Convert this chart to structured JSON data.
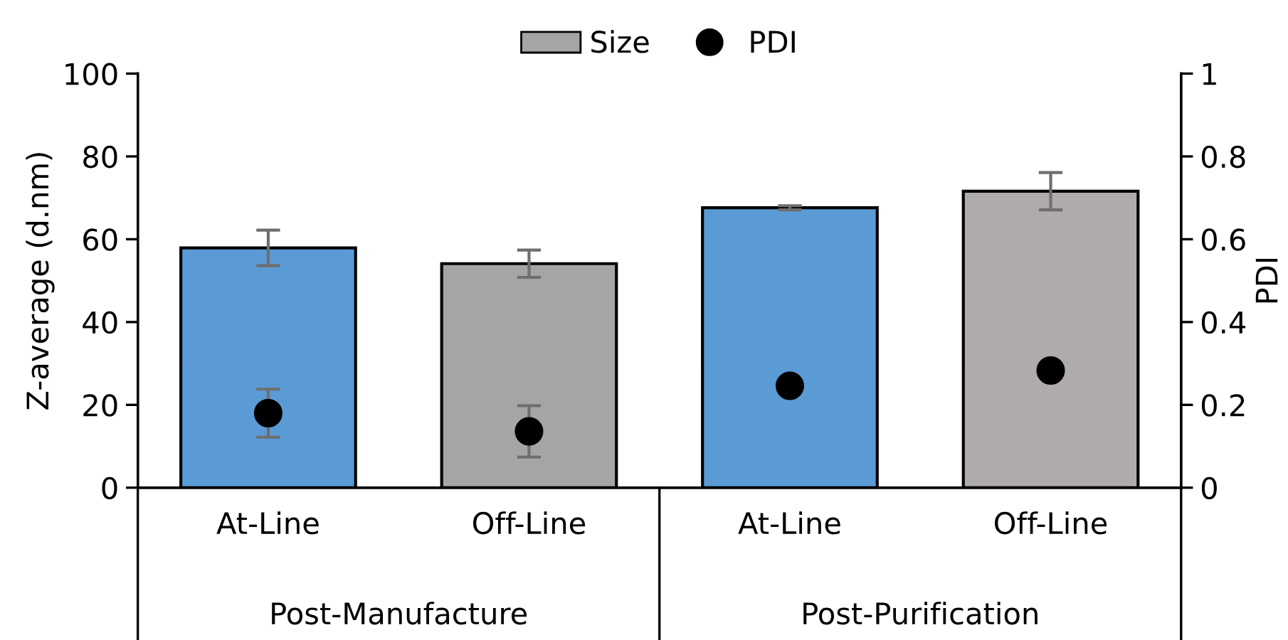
{
  "chart_data": {
    "type": "bar",
    "categories": [
      "At-Line",
      "Off-Line",
      "At-Line",
      "Off-Line"
    ],
    "annotations": [
      "Post-Manufacture",
      "Post-Purification"
    ],
    "ylabel": "Z-average (d.nm)",
    "y2label": "PDI",
    "ylim": [
      0,
      100
    ],
    "yticks": [
      0,
      20,
      40,
      60,
      80,
      100
    ],
    "y2lim": [
      0,
      1
    ],
    "y2ticks": [
      0,
      0.2,
      0.4,
      0.6,
      0.8,
      1
    ],
    "series": [
      {
        "name": "Size",
        "color": "#a5a5a5",
        "colors": [
          "#5b9bd5",
          "#a5a5a5",
          "#5b9bd5",
          "#afabab"
        ],
        "values": [
          57.9,
          54.1,
          67.6,
          71.6
        ],
        "errors": [
          4.3,
          3.3,
          0.5,
          4.5
        ]
      },
      {
        "name": "PDI",
        "type": "scatter",
        "axis": "y2",
        "color": "#000000",
        "marker": "circle",
        "values": [
          0.18,
          0.136,
          0.246,
          0.283
        ],
        "errors": [
          0.058,
          0.062,
          null,
          null
        ]
      }
    ],
    "legend": "top",
    "grid": false
  }
}
